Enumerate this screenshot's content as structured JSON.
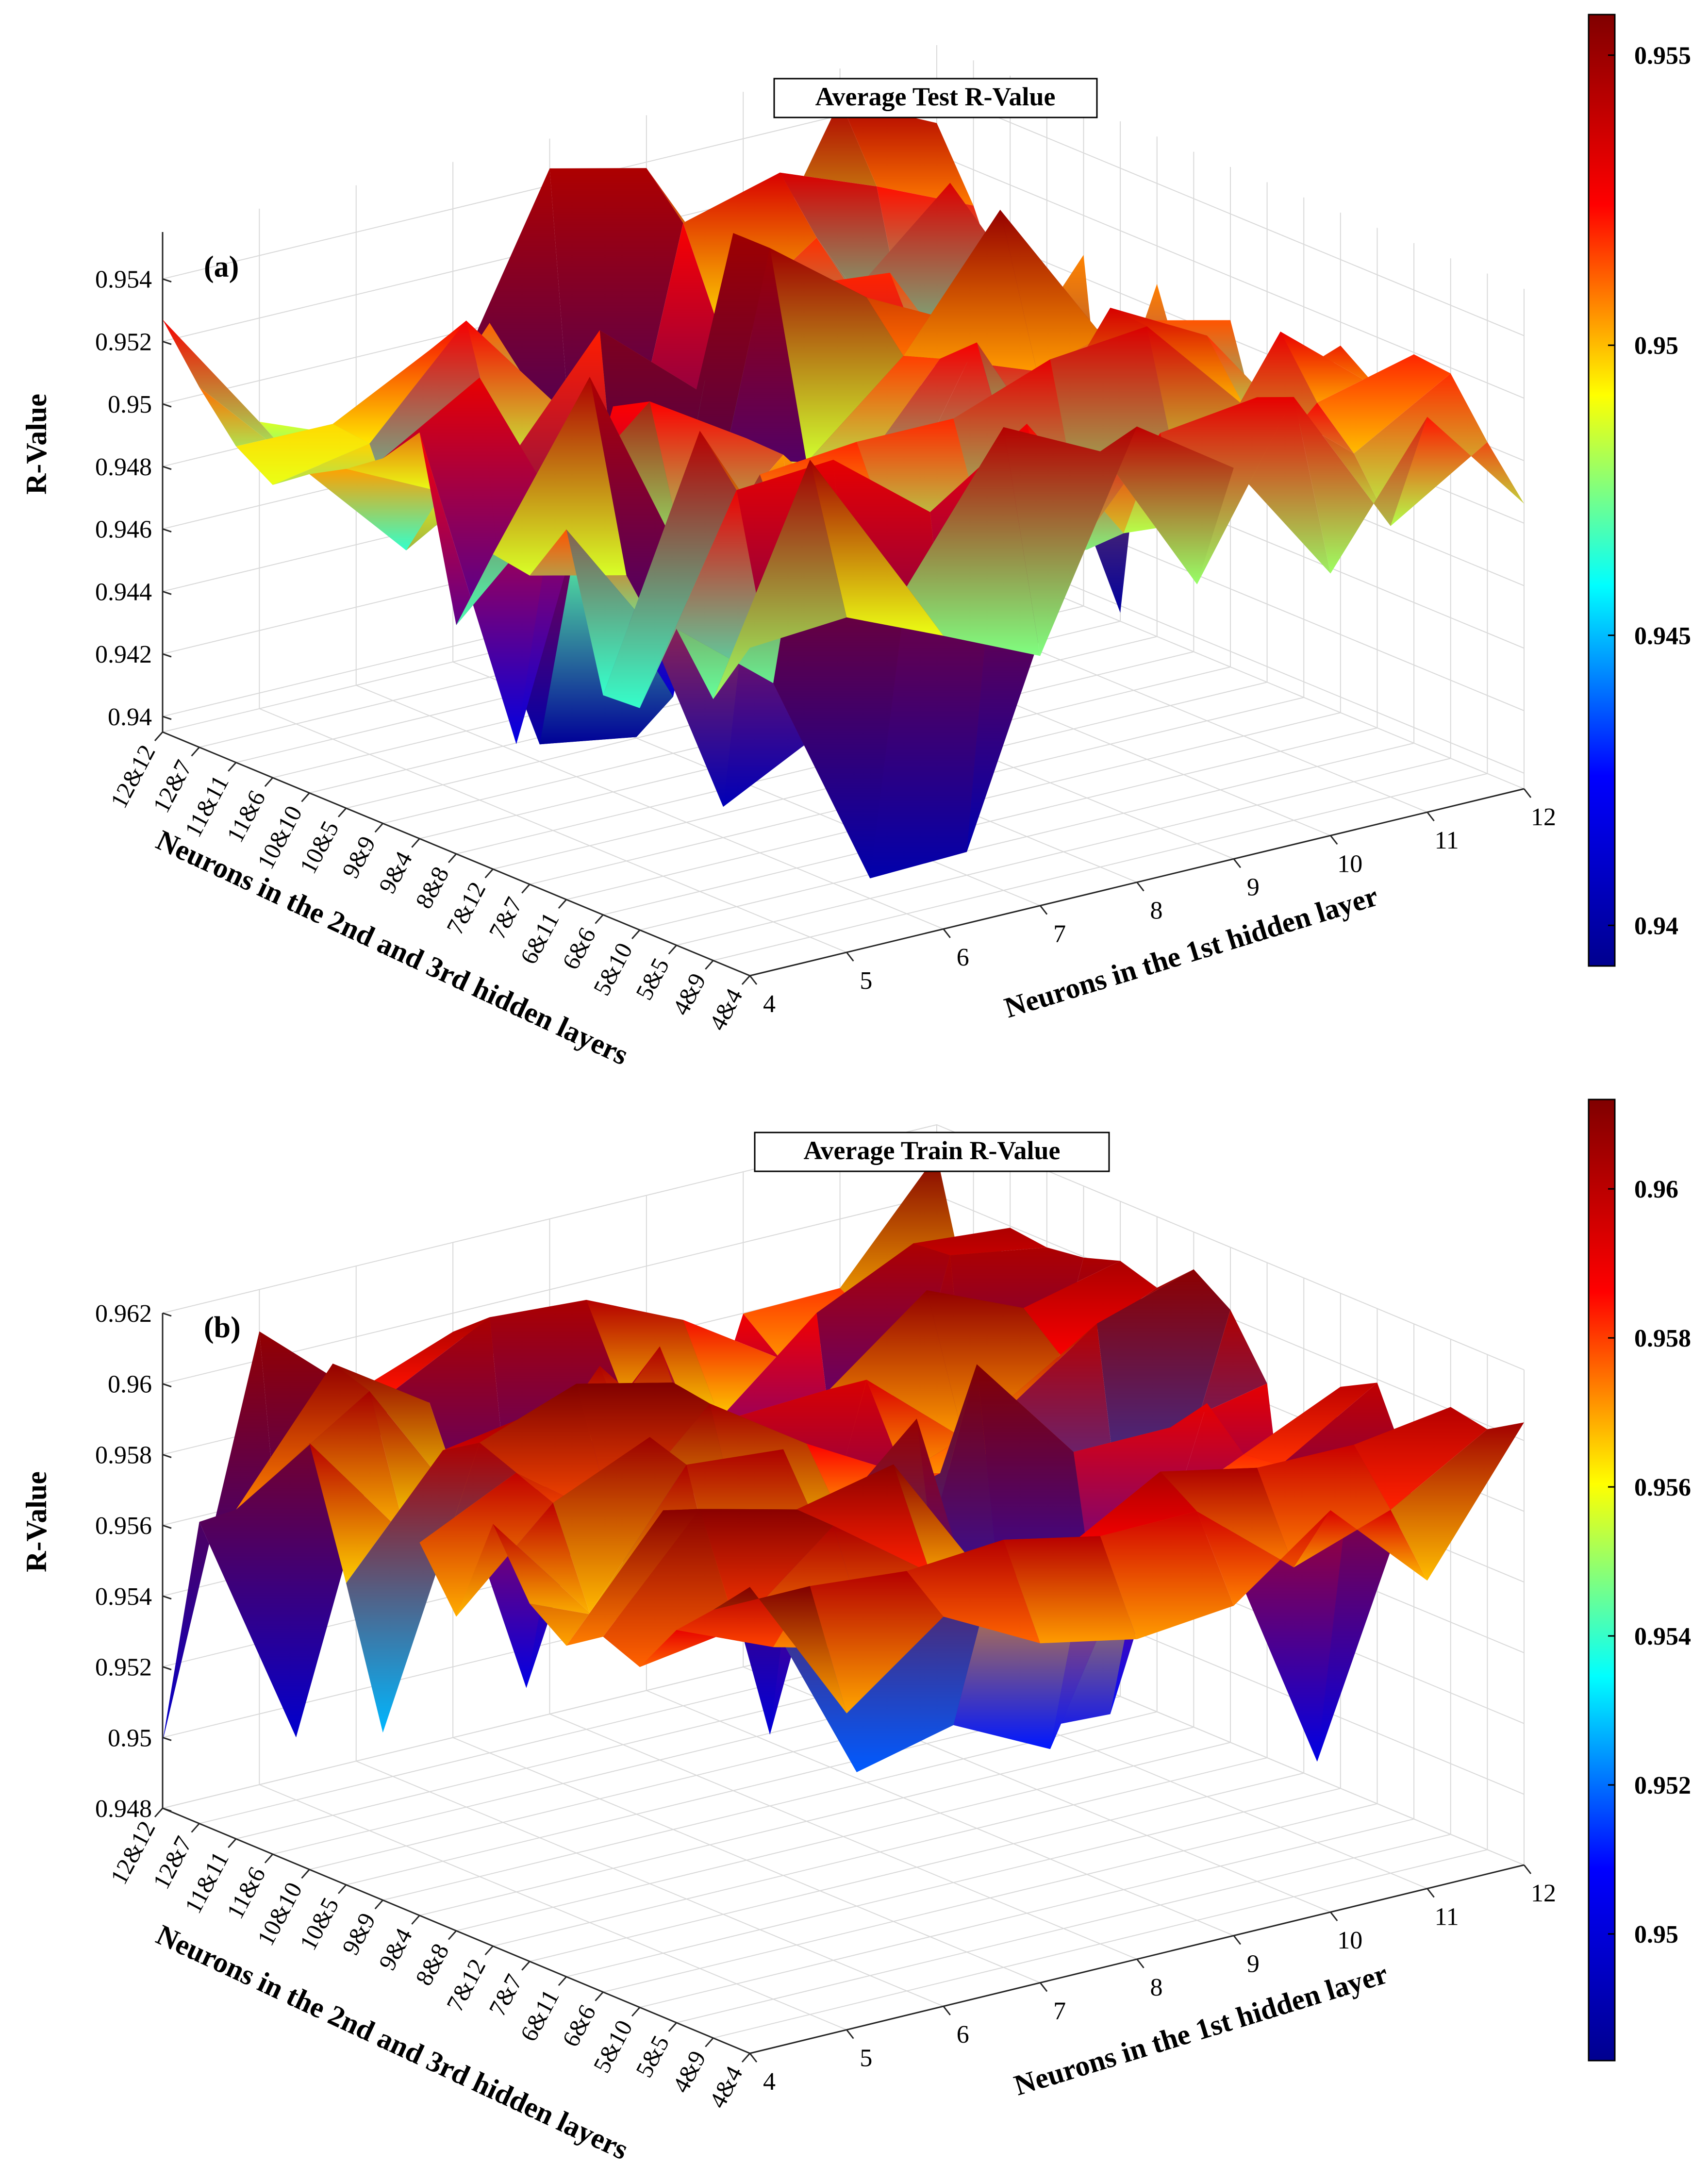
{
  "colormap": [
    "#00008f",
    "#0000ff",
    "#00ffff",
    "#ffff00",
    "#ff0000",
    "#800000"
  ],
  "chart_data": [
    {
      "type": "surface3d",
      "panel_label": "(a)",
      "title": "Average Test R-Value",
      "zlabel": "R-Value",
      "xlabel": "Neurons in the 1st hidden layer",
      "ylabel": "Neurons in the 2nd and 3rd hidden layers",
      "x_ticks": [
        "4",
        "5",
        "6",
        "7",
        "8",
        "9",
        "10",
        "11",
        "12"
      ],
      "y_ticks": [
        "12&12",
        "12&7",
        "11&11",
        "11&6",
        "10&10",
        "10&5",
        "9&9",
        "9&4",
        "8&8",
        "7&12",
        "7&7",
        "6&11",
        "6&6",
        "5&10",
        "5&5",
        "4&9",
        "4&4"
      ],
      "z_ticks": [
        "0.94",
        "0.942",
        "0.944",
        "0.946",
        "0.948",
        "0.95",
        "0.952",
        "0.954"
      ],
      "zlim": [
        0.9395,
        0.9555
      ],
      "colorbar": {
        "ticks": [
          "0.94",
          "0.945",
          "0.95",
          "0.955"
        ],
        "range": [
          0.9393,
          0.9557
        ]
      },
      "approx_min": 0.9395,
      "approx_max": 0.9553,
      "typical_level": 0.95
    },
    {
      "type": "surface3d",
      "panel_label": "(b)",
      "title": "Average Train R-Value",
      "zlabel": "R-Value",
      "xlabel": "Neurons in the 1st hidden layer",
      "ylabel": "Neurons in the 2nd and 3rd hidden layers",
      "x_ticks": [
        "4",
        "5",
        "6",
        "7",
        "8",
        "9",
        "10",
        "11",
        "12"
      ],
      "y_ticks": [
        "12&12",
        "12&7",
        "11&11",
        "11&6",
        "10&10",
        "10&5",
        "9&9",
        "9&4",
        "8&8",
        "7&12",
        "7&7",
        "6&11",
        "6&6",
        "5&10",
        "5&5",
        "4&9",
        "4&4"
      ],
      "z_ticks": [
        "0.948",
        "0.95",
        "0.952",
        "0.954",
        "0.956",
        "0.958",
        "0.96",
        "0.962"
      ],
      "zlim": [
        0.948,
        0.962
      ],
      "colorbar": {
        "ticks": [
          "0.95",
          "0.952",
          "0.954",
          "0.956",
          "0.958",
          "0.96"
        ],
        "range": [
          0.9483,
          0.9612
        ]
      },
      "approx_min": 0.9495,
      "approx_max": 0.9605,
      "typical_level": 0.9588
    }
  ]
}
